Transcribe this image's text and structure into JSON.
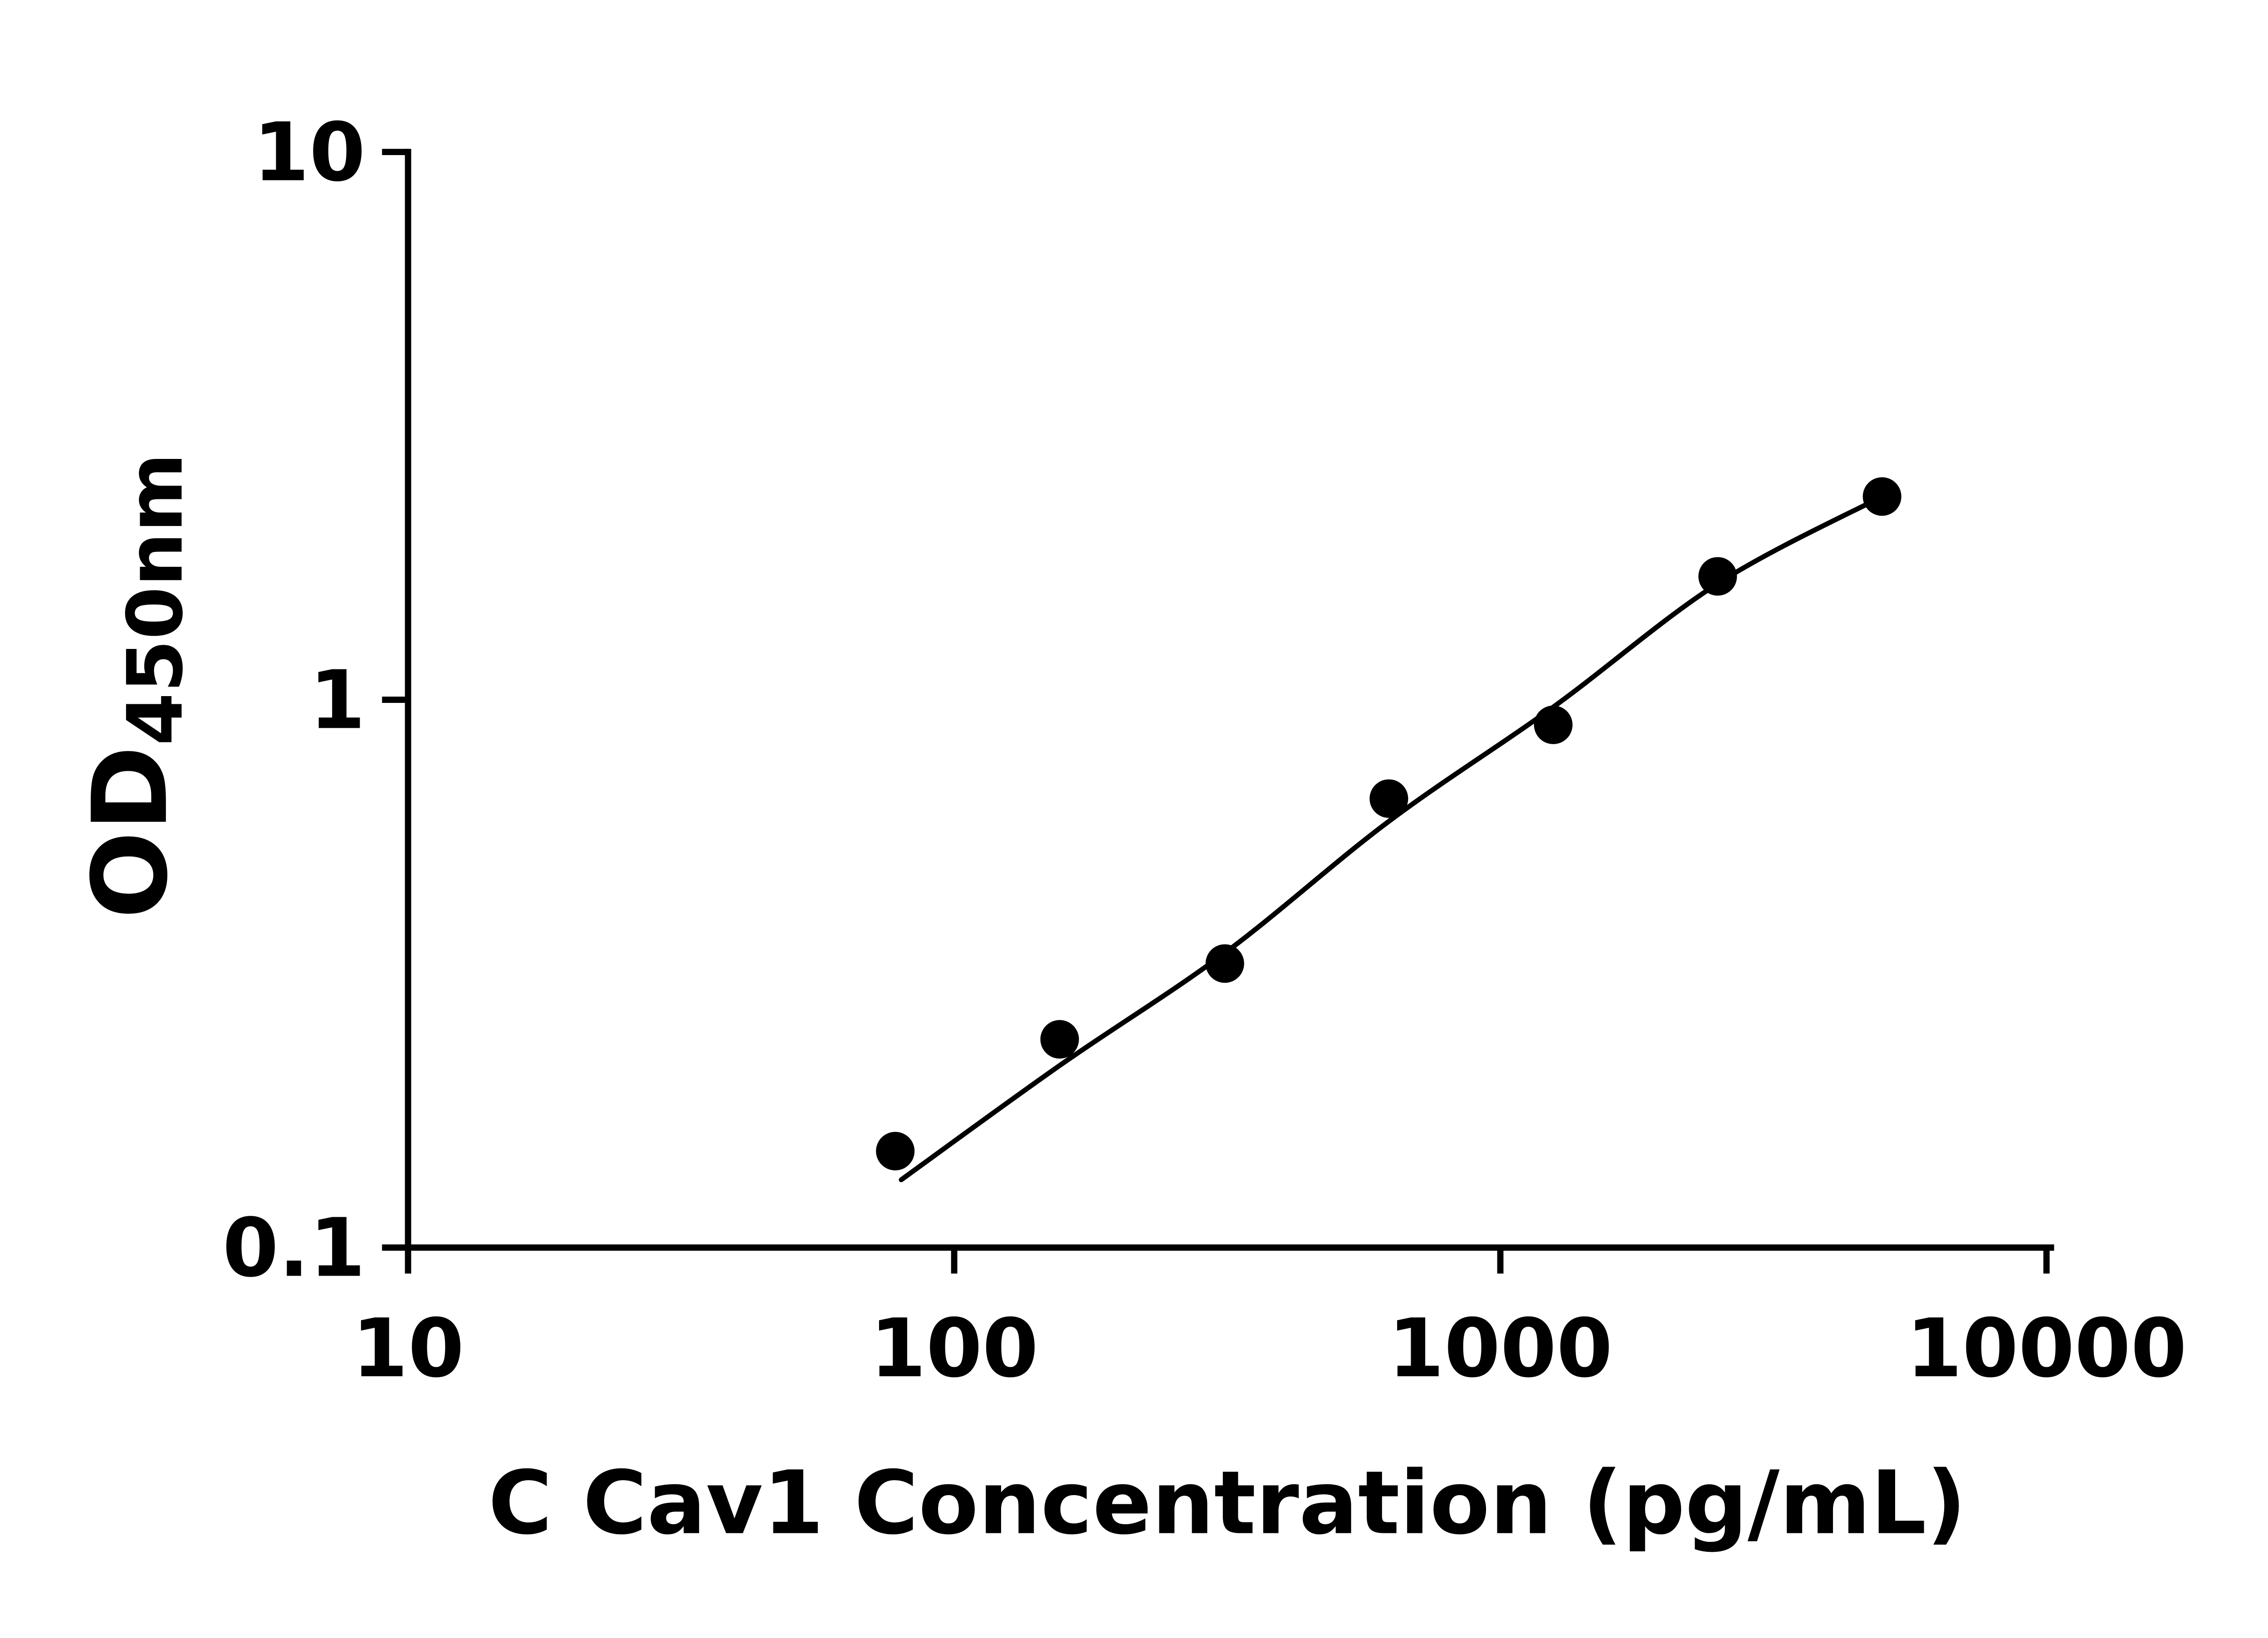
{
  "chart_data": {
    "type": "scatter",
    "title": "",
    "xlabel": "C Cav1 Concentration (pg/mL)",
    "ylabel_main": "OD",
    "ylabel_sub": "450nm",
    "x_scale": "log",
    "y_scale": "log",
    "xlim": [
      10,
      10000
    ],
    "ylim": [
      0.1,
      10
    ],
    "grid": false,
    "legend": false,
    "color": "#000000",
    "background": "#ffffff",
    "x_ticks": [
      {
        "value": 10,
        "label": "10"
      },
      {
        "value": 100,
        "label": "100"
      },
      {
        "value": 1000,
        "label": "1000"
      },
      {
        "value": 10000,
        "label": "10000"
      }
    ],
    "y_ticks": [
      {
        "value": 0.1,
        "label": "0.1"
      },
      {
        "value": 1,
        "label": "1"
      },
      {
        "value": 10,
        "label": "10"
      }
    ],
    "points": [
      {
        "x": 78,
        "y": 0.15
      },
      {
        "x": 156,
        "y": 0.24
      },
      {
        "x": 313,
        "y": 0.33
      },
      {
        "x": 625,
        "y": 0.66
      },
      {
        "x": 1250,
        "y": 0.9
      },
      {
        "x": 2500,
        "y": 1.68
      },
      {
        "x": 5000,
        "y": 2.35
      }
    ],
    "fit_curve_anchors": [
      {
        "x": 80,
        "y": 0.133
      },
      {
        "x": 156,
        "y": 0.215
      },
      {
        "x": 313,
        "y": 0.345
      },
      {
        "x": 625,
        "y": 0.6
      },
      {
        "x": 1250,
        "y": 0.97
      },
      {
        "x": 2500,
        "y": 1.63
      },
      {
        "x": 5000,
        "y": 2.35
      }
    ]
  }
}
